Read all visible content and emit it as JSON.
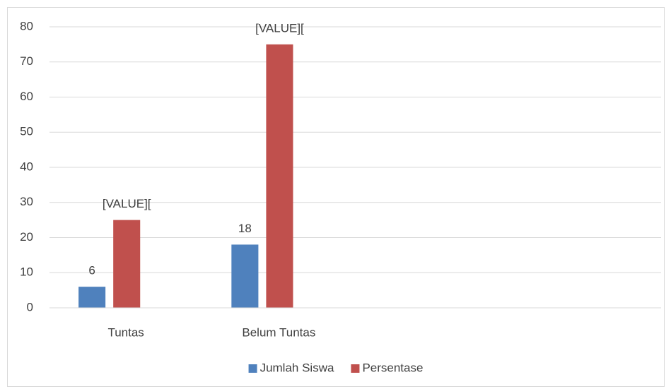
{
  "chart_data": {
    "type": "bar",
    "categories": [
      "Tuntas",
      "Belum Tuntas",
      null,
      null
    ],
    "series": [
      {
        "name": "Jumlah Siswa",
        "color": "#4f81bd",
        "values": [
          6,
          18,
          null,
          null
        ]
      },
      {
        "name": "Persentase",
        "color": "#c0504d",
        "values": [
          25,
          75,
          null,
          null
        ],
        "value_labels": [
          "[VALUE][",
          "[VALUE][",
          null,
          null
        ]
      }
    ],
    "ylim": [
      0,
      80
    ],
    "yticks": [
      0,
      10,
      20,
      30,
      40,
      50,
      60,
      70,
      80
    ],
    "grid": true,
    "legend": "bottom"
  }
}
